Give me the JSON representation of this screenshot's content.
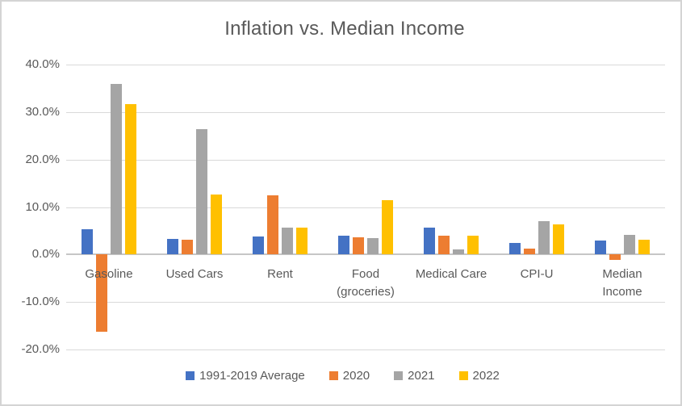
{
  "chart_data": {
    "type": "bar",
    "title": "Inflation vs. Median Income",
    "categories": [
      "Gasoline",
      "Used Cars",
      "Rent",
      "Food\n(groceries)",
      "Medical Care",
      "CPI-U",
      "Median\nIncome"
    ],
    "series": [
      {
        "name": "1991-2019 Average",
        "color": "#4472C4",
        "values": [
          5.4,
          3.3,
          3.8,
          3.9,
          5.7,
          2.4,
          2.9
        ]
      },
      {
        "name": "2020",
        "color": "#ED7D31",
        "values": [
          -16.3,
          3.2,
          12.5,
          3.6,
          4.0,
          1.3,
          -1.1
        ]
      },
      {
        "name": "2021",
        "color": "#A5A5A5",
        "values": [
          36.0,
          26.4,
          5.7,
          3.5,
          1.1,
          7.0,
          4.1
        ]
      },
      {
        "name": "2022",
        "color": "#FFC000",
        "values": [
          31.7,
          12.6,
          5.6,
          11.4,
          4.0,
          6.4,
          3.2
        ]
      }
    ],
    "ylim": [
      -20,
      40
    ],
    "y_ticks": [
      {
        "value": 40,
        "label": "40.0%"
      },
      {
        "value": 30,
        "label": "30.0%"
      },
      {
        "value": 20,
        "label": "20.0%"
      },
      {
        "value": 10,
        "label": "10.0%"
      },
      {
        "value": 0,
        "label": "0.0%"
      },
      {
        "value": -10,
        "label": "-10.0%"
      },
      {
        "value": -20,
        "label": "-20.0%"
      }
    ],
    "grid": true,
    "legend_position": "bottom",
    "gridline_color": "#d9d9d9",
    "zero_line_color": "#c6c6c6",
    "text_color": "#595959"
  }
}
